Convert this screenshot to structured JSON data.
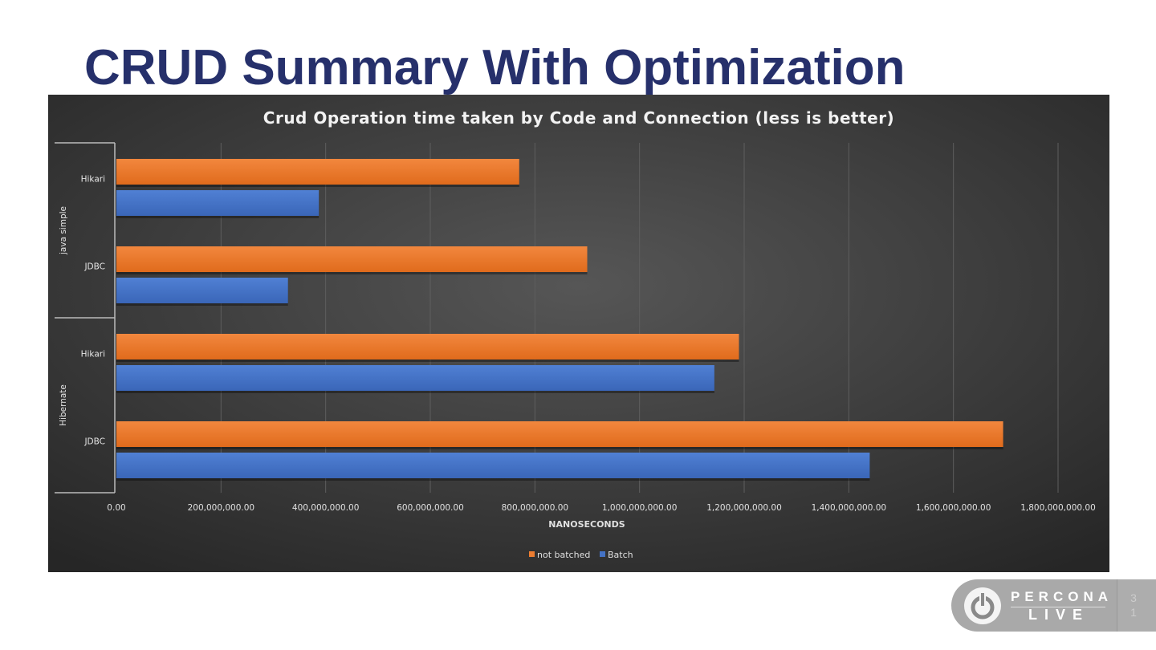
{
  "slide": {
    "title": "CRUD Summary With Optimization",
    "page_number": [
      "3",
      "1"
    ],
    "logo": {
      "line1": "PERCONA",
      "line2": "LIVE",
      "icon": "power-icon"
    }
  },
  "colors": {
    "not_batched": "#ed7d31",
    "batch": "#4472c4",
    "background": "#3d3d3d"
  },
  "chart_data": {
    "type": "bar",
    "orientation": "horizontal",
    "title": "Crud Operation time taken by Code and Connection (less is better)",
    "xlabel": "NANOSECONDS",
    "ylabel": "",
    "xlim": [
      0,
      1800000000
    ],
    "x_ticks": [
      "0.00",
      "200,000,000.00",
      "400,000,000.00",
      "600,000,000.00",
      "800,000,000.00",
      "1,000,000,000.00",
      "1,200,000,000.00",
      "1,400,000,000.00",
      "1,600,000,000.00",
      "1,800,000,000.00"
    ],
    "grid": true,
    "legend_position": "bottom",
    "groups": [
      {
        "name": "java simple",
        "categories": [
          "Hikari",
          "JDBC"
        ]
      },
      {
        "name": "Hibernate",
        "categories": [
          "Hikari",
          "JDBC"
        ]
      }
    ],
    "categories": [
      "java simple / Hikari",
      "java simple / JDBC",
      "Hibernate / Hikari",
      "Hibernate / JDBC"
    ],
    "series": [
      {
        "name": "not batched",
        "values": [
          770000000,
          900000000,
          1190000000,
          1695000000
        ]
      },
      {
        "name": "Batch",
        "values": [
          387000000,
          328000000,
          1143000000,
          1440000000
        ]
      }
    ]
  }
}
